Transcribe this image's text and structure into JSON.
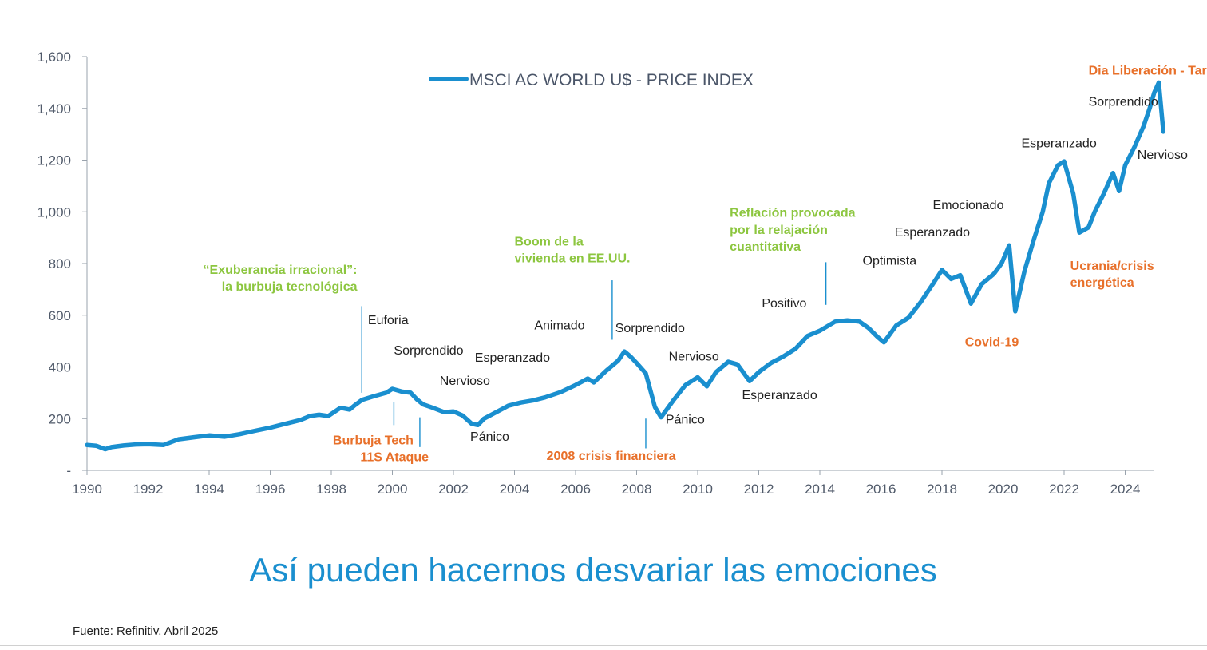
{
  "chart_data": {
    "type": "line",
    "title": "MSCI AC WORLD U$ - PRICE INDEX",
    "legend": "MSCI AC WORLD U$ - PRICE INDEX",
    "legend_position": "top-center",
    "xlabel": "",
    "ylabel": "",
    "xlim": [
      1990,
      2025.1
    ],
    "ylim": [
      0,
      1600
    ],
    "grid": false,
    "series_color": "#1a8fcf",
    "y_ticks": [
      {
        "value": 0,
        "label": "-"
      },
      {
        "value": 200,
        "label": "200"
      },
      {
        "value": 400,
        "label": "400"
      },
      {
        "value": 600,
        "label": "600"
      },
      {
        "value": 800,
        "label": "800"
      },
      {
        "value": 1000,
        "label": "1,000"
      },
      {
        "value": 1200,
        "label": "1,200"
      },
      {
        "value": 1400,
        "label": "1,400"
      },
      {
        "value": 1600,
        "label": "1,600"
      }
    ],
    "x_ticks": [
      {
        "value": 1990,
        "label": "1990"
      },
      {
        "value": 1992,
        "label": "1992"
      },
      {
        "value": 1994,
        "label": "1994"
      },
      {
        "value": 1996,
        "label": "1996"
      },
      {
        "value": 1998,
        "label": "1998"
      },
      {
        "value": 2000,
        "label": "2000"
      },
      {
        "value": 2002,
        "label": "2002"
      },
      {
        "value": 2004,
        "label": "2004"
      },
      {
        "value": 2006,
        "label": "2006"
      },
      {
        "value": 2008,
        "label": "2008"
      },
      {
        "value": 2010,
        "label": "2010"
      },
      {
        "value": 2012,
        "label": "2012"
      },
      {
        "value": 2014,
        "label": "2014"
      },
      {
        "value": 2016,
        "label": "2016"
      },
      {
        "value": 2018,
        "label": "2018"
      },
      {
        "value": 2020,
        "label": "2020"
      },
      {
        "value": 2022,
        "label": "2022"
      },
      {
        "value": 2024,
        "label": "2024"
      }
    ],
    "series": [
      {
        "name": "MSCI AC WORLD U$ - PRICE INDEX",
        "x": [
          1990.0,
          1990.3,
          1990.6,
          1990.8,
          1991.2,
          1991.6,
          1992.0,
          1992.5,
          1993.0,
          1993.5,
          1994.0,
          1994.5,
          1995.0,
          1995.5,
          1996.0,
          1996.5,
          1997.0,
          1997.3,
          1997.6,
          1997.9,
          1998.3,
          1998.6,
          1998.75,
          1999.0,
          1999.4,
          1999.8,
          2000.0,
          2000.3,
          2000.6,
          2000.8,
          2001.0,
          2001.3,
          2001.7,
          2002.0,
          2002.3,
          2002.6,
          2002.8,
          2003.0,
          2003.4,
          2003.8,
          2004.2,
          2004.6,
          2005.0,
          2005.5,
          2006.0,
          2006.4,
          2006.6,
          2007.0,
          2007.4,
          2007.6,
          2007.8,
          2008.0,
          2008.3,
          2008.6,
          2008.8,
          2009.2,
          2009.6,
          2010.0,
          2010.3,
          2010.6,
          2011.0,
          2011.3,
          2011.7,
          2012.0,
          2012.4,
          2012.8,
          2013.2,
          2013.6,
          2014.0,
          2014.5,
          2014.9,
          2015.3,
          2015.6,
          2015.9,
          2016.1,
          2016.5,
          2016.9,
          2017.3,
          2017.7,
          2018.0,
          2018.3,
          2018.6,
          2018.95,
          2019.3,
          2019.7,
          2019.95,
          2020.2,
          2020.4,
          2020.7,
          2021.0,
          2021.3,
          2021.5,
          2021.8,
          2022.0,
          2022.3,
          2022.5,
          2022.8,
          2023.0,
          2023.3,
          2023.6,
          2023.8,
          2024.0,
          2024.3,
          2024.6,
          2024.8,
          2024.95,
          2025.1,
          2025.25
        ],
        "y": [
          98,
          95,
          82,
          90,
          96,
          100,
          101,
          98,
          120,
          128,
          135,
          130,
          140,
          153,
          165,
          180,
          195,
          210,
          215,
          210,
          242,
          235,
          250,
          272,
          287,
          300,
          315,
          305,
          300,
          275,
          255,
          243,
          225,
          228,
          212,
          180,
          175,
          200,
          225,
          250,
          262,
          270,
          282,
          302,
          330,
          355,
          340,
          385,
          425,
          460,
          440,
          415,
          375,
          245,
          205,
          270,
          330,
          360,
          325,
          380,
          420,
          410,
          345,
          380,
          415,
          440,
          470,
          520,
          540,
          575,
          580,
          575,
          550,
          515,
          495,
          560,
          590,
          650,
          720,
          775,
          740,
          755,
          645,
          720,
          760,
          800,
          870,
          615,
          770,
          890,
          1000,
          1110,
          1180,
          1195,
          1070,
          920,
          940,
          1000,
          1070,
          1150,
          1080,
          1180,
          1250,
          1330,
          1400,
          1460,
          1500,
          1310
        ]
      }
    ],
    "annotations": [
      {
        "text": "“Exuberancia irracional”:",
        "style": "green",
        "x": 1998.85,
        "y": 760,
        "anchor": "end"
      },
      {
        "text": "la burbuja tecnológica",
        "style": "green",
        "x": 1998.85,
        "y": 695,
        "anchor": "end"
      },
      {
        "text": "Euforia",
        "style": "plain",
        "x": 1999.2,
        "y": 565,
        "anchor": "start"
      },
      {
        "text": "Sorprendido",
        "style": "plain",
        "x": 2000.05,
        "y": 448,
        "anchor": "start"
      },
      {
        "text": "Esperanzado",
        "style": "plain",
        "x": 2002.7,
        "y": 420,
        "anchor": "start"
      },
      {
        "text": "Nervioso",
        "style": "plain",
        "x": 2001.55,
        "y": 330,
        "anchor": "start"
      },
      {
        "text": "Pánico",
        "style": "plain",
        "x": 2002.55,
        "y": 115,
        "anchor": "start"
      },
      {
        "text": "Burbuja Tech",
        "style": "orange",
        "x": 1998.05,
        "y": 100,
        "anchor": "start"
      },
      {
        "text": "11S Ataque",
        "style": "orange",
        "x": 1998.95,
        "y": 35,
        "anchor": "start"
      },
      {
        "text": "Boom de la",
        "style": "green",
        "x": 2004.0,
        "y": 870,
        "anchor": "start"
      },
      {
        "text": "vivienda en EE.UU.",
        "style": "green",
        "x": 2004.0,
        "y": 805,
        "anchor": "start"
      },
      {
        "text": "Animado",
        "style": "plain",
        "x": 2004.65,
        "y": 545,
        "anchor": "start"
      },
      {
        "text": "Sorprendido",
        "style": "plain",
        "x": 2007.3,
        "y": 535,
        "anchor": "start"
      },
      {
        "text": "Nervioso",
        "style": "plain",
        "x": 2009.05,
        "y": 425,
        "anchor": "start"
      },
      {
        "text": "Pánico",
        "style": "plain",
        "x": 2008.95,
        "y": 180,
        "anchor": "start"
      },
      {
        "text": "2008 crisis financiera",
        "style": "orange",
        "x": 2005.05,
        "y": 40,
        "anchor": "start"
      },
      {
        "text": "Reflación provocada",
        "style": "green",
        "x": 2011.05,
        "y": 980,
        "anchor": "start"
      },
      {
        "text": "por la relajación",
        "style": "green",
        "x": 2011.05,
        "y": 915,
        "anchor": "start"
      },
      {
        "text": "cuantitativa",
        "style": "green",
        "x": 2011.05,
        "y": 850,
        "anchor": "start"
      },
      {
        "text": "Positivo",
        "style": "plain",
        "x": 2012.1,
        "y": 630,
        "anchor": "start"
      },
      {
        "text": "Esperanzado",
        "style": "plain",
        "x": 2011.45,
        "y": 275,
        "anchor": "start"
      },
      {
        "text": "Optimista",
        "style": "plain",
        "x": 2015.4,
        "y": 795,
        "anchor": "start"
      },
      {
        "text": "Esperanzado",
        "style": "plain",
        "x": 2016.45,
        "y": 905,
        "anchor": "start"
      },
      {
        "text": "Emocionado",
        "style": "plain",
        "x": 2017.7,
        "y": 1010,
        "anchor": "start"
      },
      {
        "text": "Covid-19",
        "style": "orange",
        "x": 2018.75,
        "y": 480,
        "anchor": "start"
      },
      {
        "text": "Esperanzado",
        "style": "plain",
        "x": 2020.6,
        "y": 1250,
        "anchor": "start"
      },
      {
        "text": "Ucrania/crisis",
        "style": "orange",
        "x": 2022.2,
        "y": 775,
        "anchor": "start"
      },
      {
        "text": "energética",
        "style": "orange",
        "x": 2022.2,
        "y": 710,
        "anchor": "start"
      },
      {
        "text": "Sorprendido",
        "style": "plain",
        "x": 2022.8,
        "y": 1410,
        "anchor": "start"
      },
      {
        "text": "Dia Liberación - Tarifas",
        "style": "orange",
        "x": 2022.8,
        "y": 1530,
        "anchor": "start"
      },
      {
        "text": "Nervioso",
        "style": "plain",
        "x": 2024.4,
        "y": 1205,
        "anchor": "start"
      }
    ],
    "markers": [
      {
        "x": 1999.0,
        "y_from": 300,
        "y_to": 635
      },
      {
        "x": 2000.05,
        "y_from": 175,
        "y_to": 265
      },
      {
        "x": 2000.9,
        "y_from": 90,
        "y_to": 205
      },
      {
        "x": 2007.2,
        "y_from": 505,
        "y_to": 735
      },
      {
        "x": 2008.3,
        "y_from": 85,
        "y_to": 200
      },
      {
        "x": 2014.2,
        "y_from": 640,
        "y_to": 805
      }
    ]
  },
  "headline": "Así pueden hacernos desvariar las emociones",
  "source": "Fuente: Refinitiv. Abril 2025"
}
